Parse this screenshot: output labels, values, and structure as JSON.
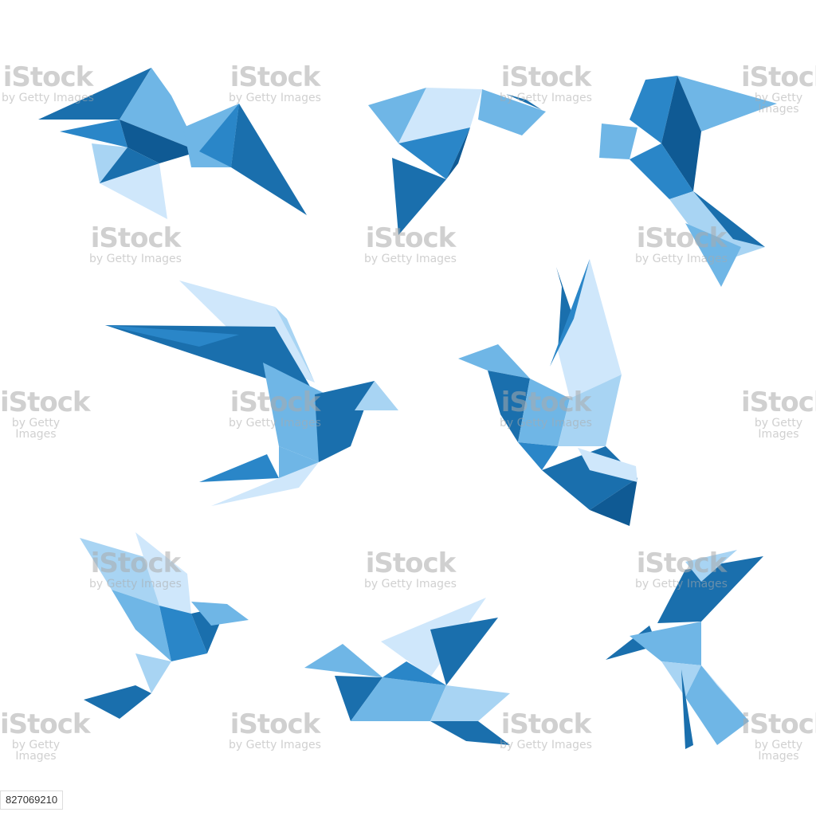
{
  "image": {
    "subject": "origami-style low-poly blue birds in flight",
    "bird_count": 8,
    "colors": {
      "background": "#ffffff",
      "darkest": "#0f5a94",
      "dark": "#1a6fad",
      "medium": "#2a86c8",
      "light": "#6fb6e6",
      "pale": "#a8d4f3",
      "palest": "#cfe7fb"
    }
  },
  "watermark": {
    "brand": "iStock",
    "credit": "by Getty Images"
  },
  "stock_id": "827069210"
}
